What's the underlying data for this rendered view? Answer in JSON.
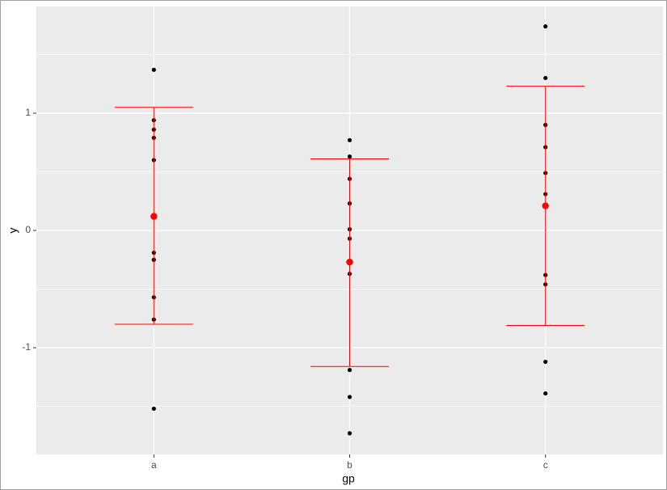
{
  "chart_data": {
    "type": "point_errorbar",
    "xlabel": "gp",
    "ylabel": "y",
    "categories": [
      "a",
      "b",
      "c"
    ],
    "points": [
      [
        1.37,
        0.94,
        0.86,
        0.79,
        0.6,
        -0.19,
        -0.25,
        -0.57,
        -0.76,
        -1.52
      ],
      [
        0.77,
        0.63,
        0.44,
        0.23,
        0.01,
        -0.07,
        -0.37,
        -1.19,
        -1.42,
        -1.73
      ],
      [
        1.74,
        1.3,
        0.9,
        0.71,
        0.49,
        0.31,
        -0.38,
        -0.46,
        -1.12,
        -1.39
      ]
    ],
    "mean": [
      0.12,
      -0.27,
      0.21
    ],
    "ymin": [
      -0.8,
      -1.16,
      -0.81
    ],
    "ymax": [
      1.05,
      0.61,
      1.23
    ],
    "point_color": "#000000",
    "summary_color": "#ff0000",
    "ylim": [
      -1.91,
      1.91
    ],
    "yticks": [
      -1,
      0,
      1
    ],
    "minor_yticks": [
      -1.5,
      -0.5,
      0.5,
      1.5
    ],
    "grid": true
  }
}
